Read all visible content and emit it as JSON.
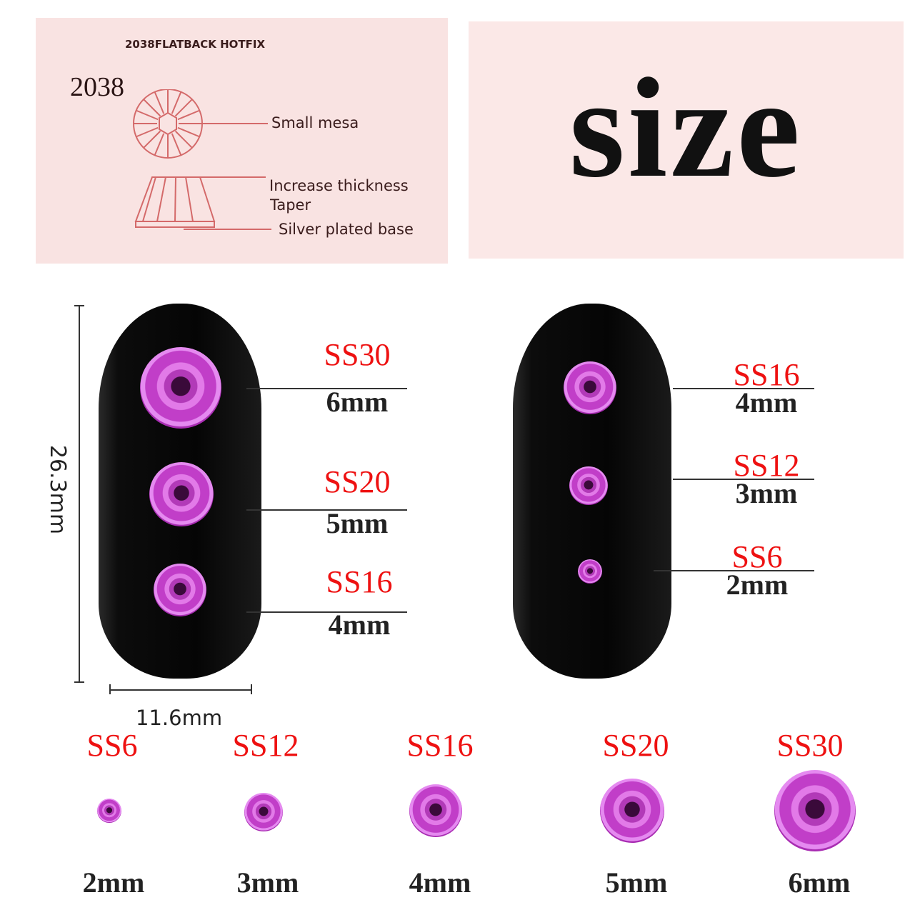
{
  "diagram": {
    "header": "2038FLATBACK HOTFIX",
    "model": "2038",
    "labels": [
      "Small mesa",
      "Increase thickness",
      "Taper",
      "Silver plated base"
    ],
    "line_color": "#d46a6a"
  },
  "title": "size",
  "dimensions": {
    "height": "26.3mm",
    "width": "11.6mm"
  },
  "nail_left": [
    {
      "ss": "SS30",
      "mm": "6mm"
    },
    {
      "ss": "SS20",
      "mm": "5mm"
    },
    {
      "ss": "SS16",
      "mm": "4mm"
    }
  ],
  "nail_right": [
    {
      "ss": "SS16",
      "mm": "4mm"
    },
    {
      "ss": "SS12",
      "mm": "3mm"
    },
    {
      "ss": "SS6",
      "mm": "2mm"
    }
  ],
  "sizes": [
    {
      "ss": "SS6",
      "mm": "2mm"
    },
    {
      "ss": "SS12",
      "mm": "3mm"
    },
    {
      "ss": "SS16",
      "mm": "4mm"
    },
    {
      "ss": "SS20",
      "mm": "5mm"
    },
    {
      "ss": "SS30",
      "mm": "6mm"
    }
  ],
  "colors": {
    "label_red": "#ee1111",
    "gem": "#c13ec8",
    "panel": "#f9e3e2"
  }
}
